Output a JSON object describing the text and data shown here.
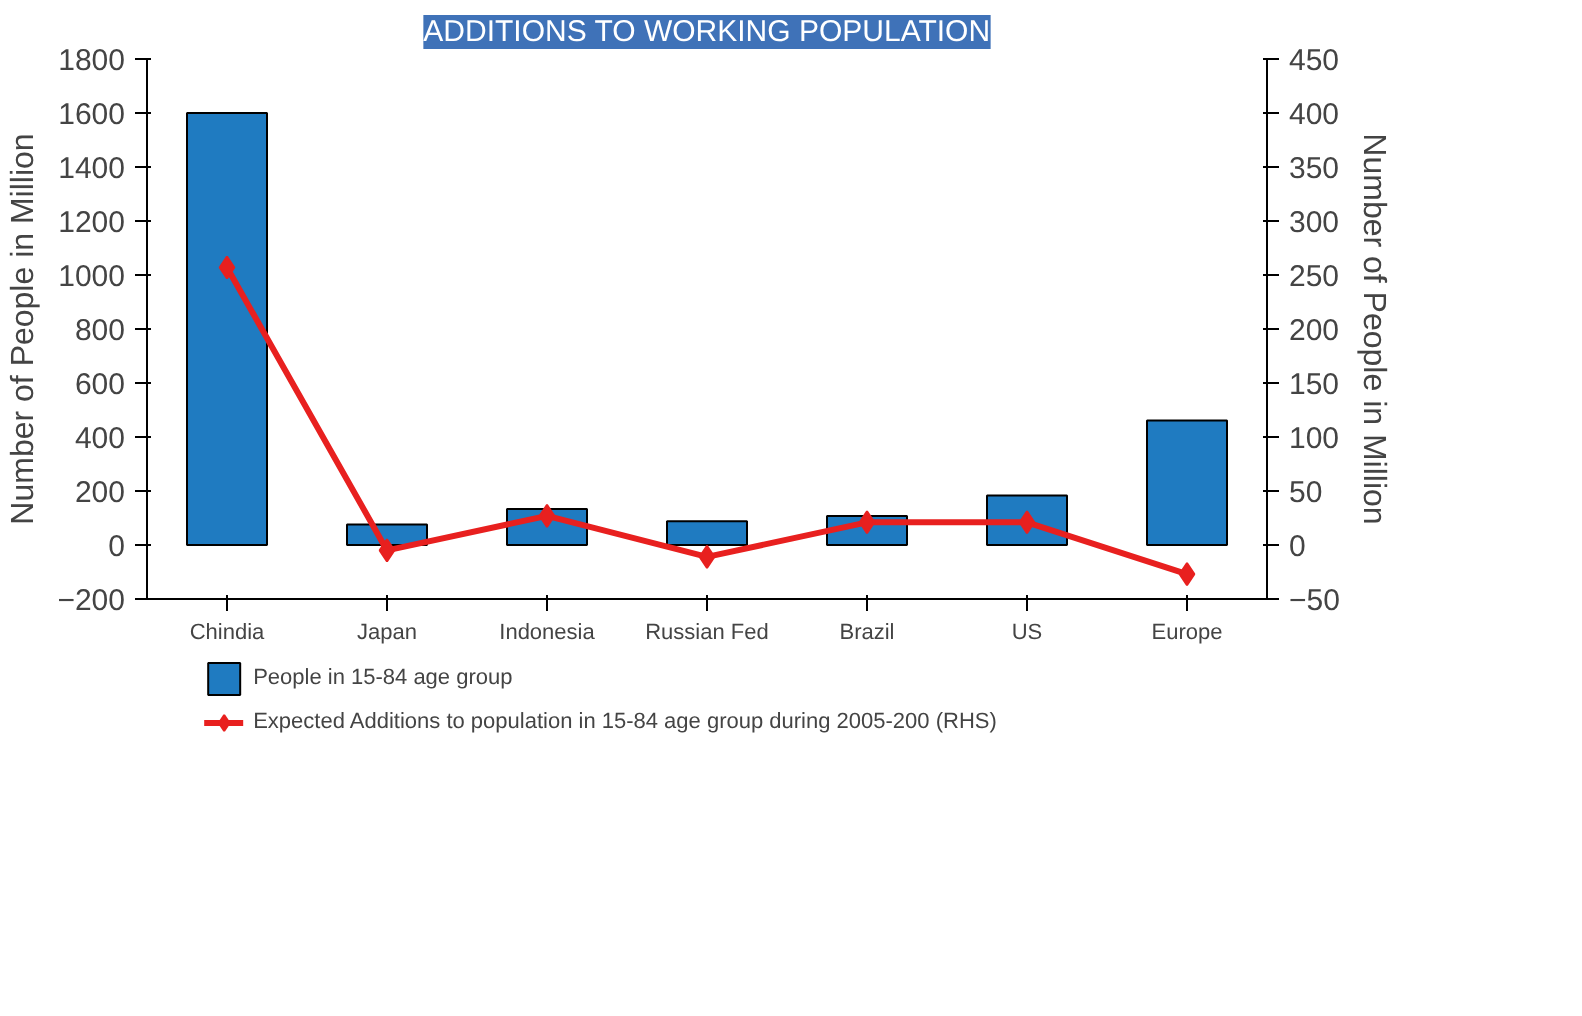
{
  "chart_data": {
    "type": "bar",
    "title": "ADDITIONS TO WORKING POPULATION",
    "categories": [
      "Chindia",
      "Japan",
      "Indonesia",
      "Russian Fed",
      "Brazil",
      "US",
      "Europe"
    ],
    "series": [
      {
        "name": "People in 15-84 age group",
        "color": "#1f7bc1",
        "values": [
          1600,
          76,
          133,
          88,
          107,
          183,
          461
        ]
      },
      {
        "name": "Expected Additions to population in 15-84 age group during 2005-200 (RHS)",
        "type": "line",
        "axis": "y2",
        "color": "#e8201f",
        "marker": "diamond",
        "values": [
          257,
          -5,
          27,
          -11,
          21,
          21,
          -27
        ]
      }
    ],
    "ylabel": "Number of People in Million",
    "y2label": "Number of People in Million",
    "ylim": [
      -200,
      1800
    ],
    "yticks": [
      -200,
      0,
      200,
      400,
      600,
      800,
      1000,
      1200,
      1400,
      1600,
      1800
    ],
    "y2lim": [
      -50,
      450
    ],
    "y2ticks": [
      -50,
      0,
      50,
      100,
      150,
      200,
      250,
      300,
      350,
      400,
      450
    ],
    "legend": "bottom"
  }
}
